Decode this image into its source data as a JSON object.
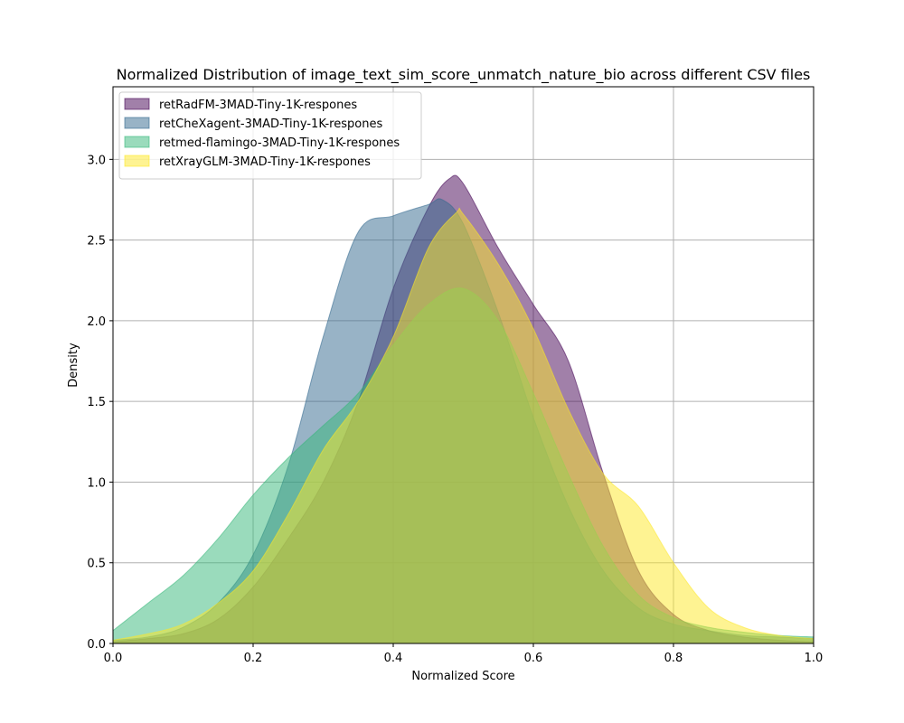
{
  "chart_data": {
    "type": "area",
    "title": "Normalized Distribution of image_text_sim_score_unmatch_nature_bio across different CSV files",
    "xlabel": "Normalized Score",
    "ylabel": "Density",
    "xlim": [
      0.0,
      1.0
    ],
    "ylim": [
      0.0,
      3.45
    ],
    "x_ticks": [
      0.0,
      0.2,
      0.4,
      0.6,
      0.8,
      1.0
    ],
    "x_tick_labels": [
      "0.0",
      "0.2",
      "0.4",
      "0.6",
      "0.8",
      "1.0"
    ],
    "y_ticks": [
      0.0,
      0.5,
      1.0,
      1.5,
      2.0,
      2.5,
      3.0
    ],
    "y_tick_labels": [
      "0.0",
      "0.5",
      "1.0",
      "1.5",
      "2.0",
      "2.5",
      "3.0"
    ],
    "grid": true,
    "legend_position": "top-left",
    "series": [
      {
        "name": "retRadFM-3MAD-Tiny-1K-respones",
        "color": "#440154",
        "x": [
          0.0,
          0.05,
          0.1,
          0.15,
          0.2,
          0.25,
          0.3,
          0.35,
          0.4,
          0.45,
          0.48,
          0.5,
          0.55,
          0.6,
          0.65,
          0.7,
          0.75,
          0.8,
          0.85,
          0.9,
          0.95,
          1.0
        ],
        "y": [
          0.01,
          0.03,
          0.06,
          0.15,
          0.35,
          0.65,
          1.0,
          1.5,
          2.2,
          2.7,
          2.88,
          2.85,
          2.45,
          2.1,
          1.75,
          1.05,
          0.45,
          0.18,
          0.08,
          0.04,
          0.02,
          0.01
        ]
      },
      {
        "name": "retCheXagent-3MAD-Tiny-1K-respones",
        "color": "#31688e",
        "x": [
          0.0,
          0.05,
          0.1,
          0.15,
          0.2,
          0.25,
          0.3,
          0.35,
          0.4,
          0.45,
          0.47,
          0.5,
          0.55,
          0.6,
          0.65,
          0.7,
          0.75,
          0.8,
          0.85,
          0.9,
          0.95,
          1.0
        ],
        "y": [
          0.02,
          0.04,
          0.1,
          0.25,
          0.55,
          1.1,
          1.9,
          2.55,
          2.65,
          2.72,
          2.75,
          2.6,
          2.05,
          1.4,
          0.85,
          0.45,
          0.22,
          0.12,
          0.08,
          0.05,
          0.04,
          0.03
        ]
      },
      {
        "name": "retmed-flamingo-3MAD-Tiny-1K-respones",
        "color": "#35b779",
        "x": [
          0.0,
          0.05,
          0.1,
          0.15,
          0.2,
          0.25,
          0.3,
          0.35,
          0.4,
          0.45,
          0.5,
          0.55,
          0.6,
          0.65,
          0.7,
          0.75,
          0.8,
          0.85,
          0.9,
          0.95,
          1.0
        ],
        "y": [
          0.08,
          0.25,
          0.42,
          0.65,
          0.92,
          1.15,
          1.35,
          1.55,
          1.85,
          2.1,
          2.2,
          2.0,
          1.55,
          1.05,
          0.6,
          0.3,
          0.16,
          0.1,
          0.07,
          0.05,
          0.04
        ]
      },
      {
        "name": "retXrayGLM-3MAD-Tiny-1K-respones",
        "color": "#fde725",
        "x": [
          0.0,
          0.05,
          0.1,
          0.15,
          0.2,
          0.25,
          0.3,
          0.35,
          0.4,
          0.45,
          0.49,
          0.5,
          0.55,
          0.6,
          0.65,
          0.7,
          0.75,
          0.8,
          0.85,
          0.9,
          0.95,
          1.0
        ],
        "y": [
          0.02,
          0.06,
          0.12,
          0.25,
          0.45,
          0.8,
          1.2,
          1.5,
          1.9,
          2.45,
          2.67,
          2.66,
          2.35,
          1.95,
          1.45,
          1.05,
          0.85,
          0.5,
          0.22,
          0.1,
          0.05,
          0.03
        ]
      }
    ]
  }
}
